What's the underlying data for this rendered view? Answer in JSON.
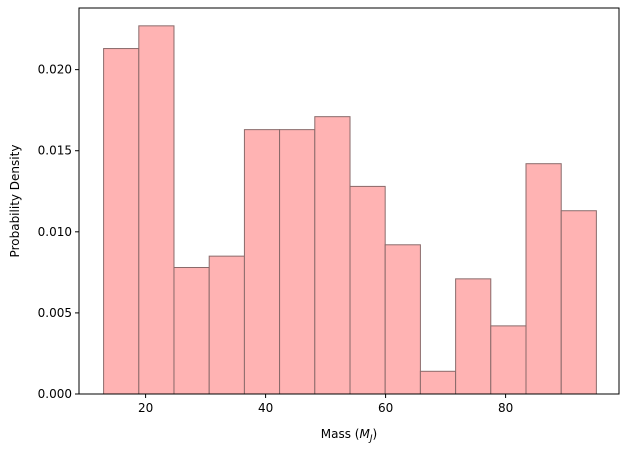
{
  "chart_data": {
    "type": "bar",
    "subtype": "histogram",
    "xlabel": "Mass ($M_J$)",
    "ylabel": "Probability Density",
    "xlim": [
      8.9,
      98.9
    ],
    "ylim": [
      0,
      0.0238
    ],
    "xticks": [
      20,
      40,
      60,
      80
    ],
    "yticks": [
      0.0,
      0.005,
      0.01,
      0.015,
      0.02
    ],
    "ytick_labels": [
      "0.000",
      "0.005",
      "0.010",
      "0.015",
      "0.020"
    ],
    "xtick_labels": [
      "20",
      "40",
      "60",
      "80"
    ],
    "grid": false,
    "legend": false,
    "bar_color": "#ffb3b3",
    "bar_edge_color": "#8a6a6a",
    "bins": [
      {
        "x0": 13.0,
        "x1": 18.87,
        "value": 0.0213
      },
      {
        "x0": 18.87,
        "x1": 24.73,
        "value": 0.0227
      },
      {
        "x0": 24.73,
        "x1": 30.6,
        "value": 0.0078
      },
      {
        "x0": 30.6,
        "x1": 36.47,
        "value": 0.0085
      },
      {
        "x0": 36.47,
        "x1": 42.33,
        "value": 0.0163
      },
      {
        "x0": 42.33,
        "x1": 48.2,
        "value": 0.0163
      },
      {
        "x0": 48.2,
        "x1": 54.07,
        "value": 0.0171
      },
      {
        "x0": 54.07,
        "x1": 59.93,
        "value": 0.0128
      },
      {
        "x0": 59.93,
        "x1": 65.8,
        "value": 0.0092
      },
      {
        "x0": 65.8,
        "x1": 71.67,
        "value": 0.0014
      },
      {
        "x0": 71.67,
        "x1": 77.53,
        "value": 0.0071
      },
      {
        "x0": 77.53,
        "x1": 83.4,
        "value": 0.0042
      },
      {
        "x0": 83.4,
        "x1": 89.27,
        "value": 0.0142
      },
      {
        "x0": 89.27,
        "x1": 95.13,
        "value": 0.0113
      }
    ]
  }
}
